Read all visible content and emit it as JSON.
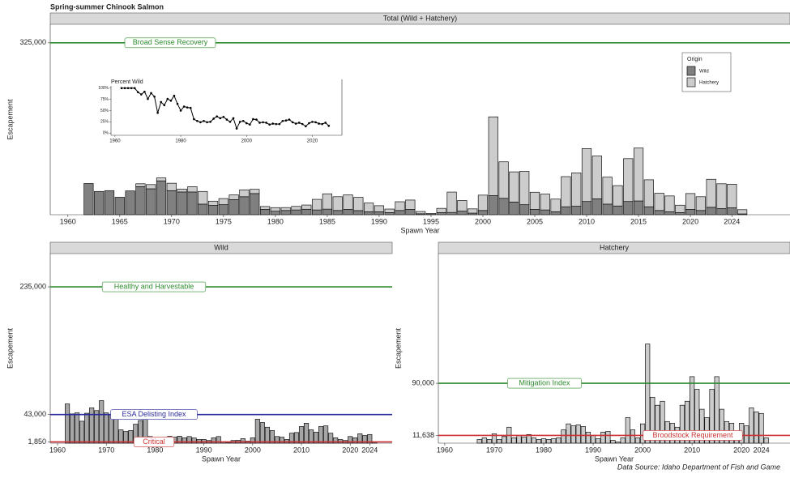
{
  "title": "Spring-summer Chinook Salmon",
  "source": "Data Source: Idaho Department of Fish and Game",
  "chart_data": [
    {
      "type": "bar",
      "stacked": true,
      "title": "Total (Wild + Hatchery)",
      "x_label": "Spawn Year",
      "y_label": "Escapement",
      "x": [
        1962,
        1963,
        1964,
        1965,
        1966,
        1967,
        1968,
        1969,
        1970,
        1971,
        1972,
        1973,
        1974,
        1975,
        1976,
        1977,
        1978,
        1979,
        1980,
        1981,
        1982,
        1983,
        1984,
        1985,
        1986,
        1987,
        1988,
        1989,
        1990,
        1991,
        1992,
        1993,
        1994,
        1995,
        1996,
        1997,
        1998,
        1999,
        2000,
        2001,
        2002,
        2003,
        2004,
        2005,
        2006,
        2007,
        2008,
        2009,
        2010,
        2011,
        2012,
        2013,
        2014,
        2015,
        2016,
        2017,
        2018,
        2019,
        2020,
        2021,
        2022,
        2023,
        2024,
        2025
      ],
      "series": [
        {
          "name": "Wild",
          "color": "#808080",
          "values": [
            59000,
            44000,
            45500,
            33000,
            45000,
            53000,
            49000,
            64000,
            45500,
            43000,
            43000,
            20000,
            17600,
            19000,
            28500,
            34000,
            40000,
            10000,
            6700,
            8000,
            9000,
            10300,
            9000,
            10500,
            8000,
            10000,
            7800,
            5500,
            5500,
            4000,
            8000,
            10000,
            1800,
            600,
            4000,
            4300,
            6800,
            3000,
            8000,
            36000,
            31000,
            24000,
            19000,
            10000,
            9000,
            5500,
            15000,
            16000,
            25000,
            30000,
            20000,
            16500,
            25000,
            26000,
            15000,
            8000,
            5500,
            4000,
            10000,
            8000,
            14000,
            11500,
            13000,
            1500
          ]
        },
        {
          "name": "Hatchery",
          "color": "#cccccc",
          "values": [
            null,
            null,
            null,
            null,
            null,
            5500,
            8000,
            5500,
            14000,
            5500,
            10000,
            24000,
            8000,
            11500,
            9000,
            13000,
            8000,
            5500,
            6700,
            5500,
            6700,
            8000,
            20000,
            29000,
            26000,
            27500,
            25000,
            16500,
            11500,
            6700,
            16500,
            17700,
            4300,
            1800,
            8000,
            38500,
            20000,
            8000,
            29000,
            149000,
            69000,
            57000,
            63000,
            32500,
            30000,
            24000,
            57000,
            63000,
            100000,
            81000,
            51000,
            38500,
            81000,
            100000,
            51000,
            32500,
            30000,
            14000,
            30000,
            26000,
            53000,
            47000,
            44700,
            8000
          ]
        }
      ],
      "xlim": [
        1958.3,
        2029.6
      ],
      "xticks": [
        1960,
        1965,
        1970,
        1975,
        1980,
        1985,
        1990,
        1995,
        2000,
        2005,
        2010,
        2015,
        2020,
        2024
      ],
      "ylim": [
        0,
        360000
      ],
      "yticks": [
        {
          "value": 325000,
          "label": "325,000"
        }
      ],
      "reference_lines": [
        {
          "label": "Broad Sense Recovery",
          "value": 325000,
          "color": "#2e8b2e"
        }
      ],
      "legend": {
        "title": "Origin",
        "position": "top-right"
      }
    },
    {
      "type": "line",
      "title": "Percent Wild",
      "color": "#000000",
      "x": [
        1962,
        1963,
        1964,
        1965,
        1966,
        1967,
        1968,
        1969,
        1970,
        1971,
        1972,
        1973,
        1974,
        1975,
        1976,
        1977,
        1978,
        1979,
        1980,
        1981,
        1982,
        1983,
        1984,
        1985,
        1986,
        1987,
        1988,
        1989,
        1990,
        1991,
        1992,
        1993,
        1994,
        1995,
        1996,
        1997,
        1998,
        1999,
        2000,
        2001,
        2002,
        2003,
        2004,
        2005,
        2006,
        2007,
        2008,
        2009,
        2010,
        2011,
        2012,
        2013,
        2014,
        2015,
        2016,
        2017,
        2018,
        2019,
        2020,
        2021,
        2022,
        2023,
        2024,
        2025
      ],
      "values": [
        100,
        100,
        100,
        100,
        100,
        91,
        86,
        92,
        76,
        89,
        81,
        45,
        69,
        62,
        76,
        72,
        83,
        65,
        50,
        59,
        57,
        56,
        31,
        27,
        24,
        27,
        24,
        25,
        32,
        37,
        33,
        36,
        30,
        25,
        33,
        10,
        25,
        27,
        22,
        19,
        31,
        30,
        23,
        24,
        23,
        19,
        21,
        20,
        20,
        27,
        28,
        30,
        24,
        21,
        23,
        20,
        15,
        22,
        25,
        24,
        21,
        20,
        23,
        16
      ],
      "xlim": [
        1958.8,
        2029
      ],
      "xticks": [
        1960,
        1980,
        2000,
        2020
      ],
      "ylim": [
        -5,
        105
      ],
      "yticks": [
        {
          "value": 0,
          "label": "0%"
        },
        {
          "value": 25,
          "label": "25%"
        },
        {
          "value": 50,
          "label": "50%"
        },
        {
          "value": 75,
          "label": "75%"
        },
        {
          "value": 100,
          "label": "100%"
        }
      ]
    },
    {
      "type": "bar",
      "title": "Wild",
      "x_label": "Spawn Year",
      "y_label": "Escapement",
      "color": "#a6a6a6",
      "x": [
        1962,
        1963,
        1964,
        1965,
        1966,
        1967,
        1968,
        1969,
        1970,
        1971,
        1972,
        1973,
        1974,
        1975,
        1976,
        1977,
        1978,
        1979,
        1980,
        1981,
        1982,
        1983,
        1984,
        1985,
        1986,
        1987,
        1988,
        1989,
        1990,
        1991,
        1992,
        1993,
        1994,
        1995,
        1996,
        1997,
        1998,
        1999,
        2000,
        2001,
        2002,
        2003,
        2004,
        2005,
        2006,
        2007,
        2008,
        2009,
        2010,
        2011,
        2012,
        2013,
        2014,
        2015,
        2016,
        2017,
        2018,
        2019,
        2020,
        2021,
        2022,
        2023,
        2024,
        2025
      ],
      "values": [
        59000,
        44000,
        45500,
        33000,
        45000,
        53000,
        49000,
        64000,
        45500,
        43000,
        43000,
        20000,
        17600,
        19000,
        28500,
        34000,
        40000,
        10000,
        6700,
        8000,
        9000,
        10300,
        9000,
        10500,
        8000,
        10000,
        7800,
        5500,
        5500,
        4000,
        8000,
        10000,
        1800,
        600,
        4000,
        4300,
        6800,
        3000,
        8000,
        36000,
        31000,
        24000,
        19000,
        10000,
        9000,
        5500,
        15000,
        16000,
        25000,
        30000,
        20000,
        16500,
        25000,
        26000,
        15000,
        8000,
        5500,
        4000,
        10000,
        8000,
        14000,
        11500,
        13000,
        1500
      ],
      "xlim": [
        1958.5,
        2028.6
      ],
      "xticks": [
        1960,
        1970,
        1980,
        1990,
        2000,
        2010,
        2020,
        2024
      ],
      "ylim": [
        0,
        285000
      ],
      "yticks": [
        {
          "value": 1850,
          "label": "1,850"
        },
        {
          "value": 43000,
          "label": "43,000"
        },
        {
          "value": 235000,
          "label": "235,000"
        }
      ],
      "reference_lines": [
        {
          "label": "Healthy and Harvestable",
          "value": 235000,
          "color": "#2e8b2e"
        },
        {
          "label": "ESA Delisting Index",
          "value": 43000,
          "color": "#2a2a9c"
        },
        {
          "label": "Critical",
          "value": 1850,
          "color": "#cc3333"
        }
      ]
    },
    {
      "type": "bar",
      "title": "Hatchery",
      "x_label": "Spawn Year",
      "y_label": "Escapement",
      "color": "#cccccc",
      "x": [
        1962,
        1963,
        1964,
        1965,
        1966,
        1967,
        1968,
        1969,
        1970,
        1971,
        1972,
        1973,
        1974,
        1975,
        1976,
        1977,
        1978,
        1979,
        1980,
        1981,
        1982,
        1983,
        1984,
        1985,
        1986,
        1987,
        1988,
        1989,
        1990,
        1991,
        1992,
        1993,
        1994,
        1995,
        1996,
        1997,
        1998,
        1999,
        2000,
        2001,
        2002,
        2003,
        2004,
        2005,
        2006,
        2007,
        2008,
        2009,
        2010,
        2011,
        2012,
        2013,
        2014,
        2015,
        2016,
        2017,
        2018,
        2019,
        2020,
        2021,
        2022,
        2023,
        2024,
        2025
      ],
      "values": [
        null,
        null,
        null,
        null,
        null,
        5500,
        8000,
        5500,
        14000,
        5500,
        10000,
        24000,
        8000,
        11500,
        9000,
        13000,
        8000,
        5500,
        6700,
        5500,
        6700,
        8000,
        20000,
        29000,
        26000,
        27500,
        25000,
        16500,
        11500,
        6700,
        16500,
        17700,
        4300,
        1800,
        8000,
        38500,
        20000,
        8000,
        29000,
        149000,
        69000,
        57000,
        63000,
        32500,
        30000,
        24000,
        57000,
        63000,
        100000,
        81000,
        51000,
        38500,
        81000,
        100000,
        51000,
        32500,
        30000,
        14000,
        30000,
        26000,
        53000,
        47000,
        44700,
        8000
      ],
      "xlim": [
        1958.7,
        2029.8
      ],
      "xticks": [
        1960,
        1970,
        1980,
        1990,
        2000,
        2010,
        2020,
        2024
      ],
      "ylim": [
        0,
        285000
      ],
      "yticks": [
        {
          "value": 11638,
          "label": "11,638"
        },
        {
          "value": 90000,
          "label": "90,000"
        }
      ],
      "reference_lines": [
        {
          "label": "Mitigation Index",
          "value": 90000,
          "color": "#2e8b2e"
        },
        {
          "label": "Broodstock Requirement",
          "value": 11638,
          "color": "#cc3333"
        }
      ]
    }
  ]
}
